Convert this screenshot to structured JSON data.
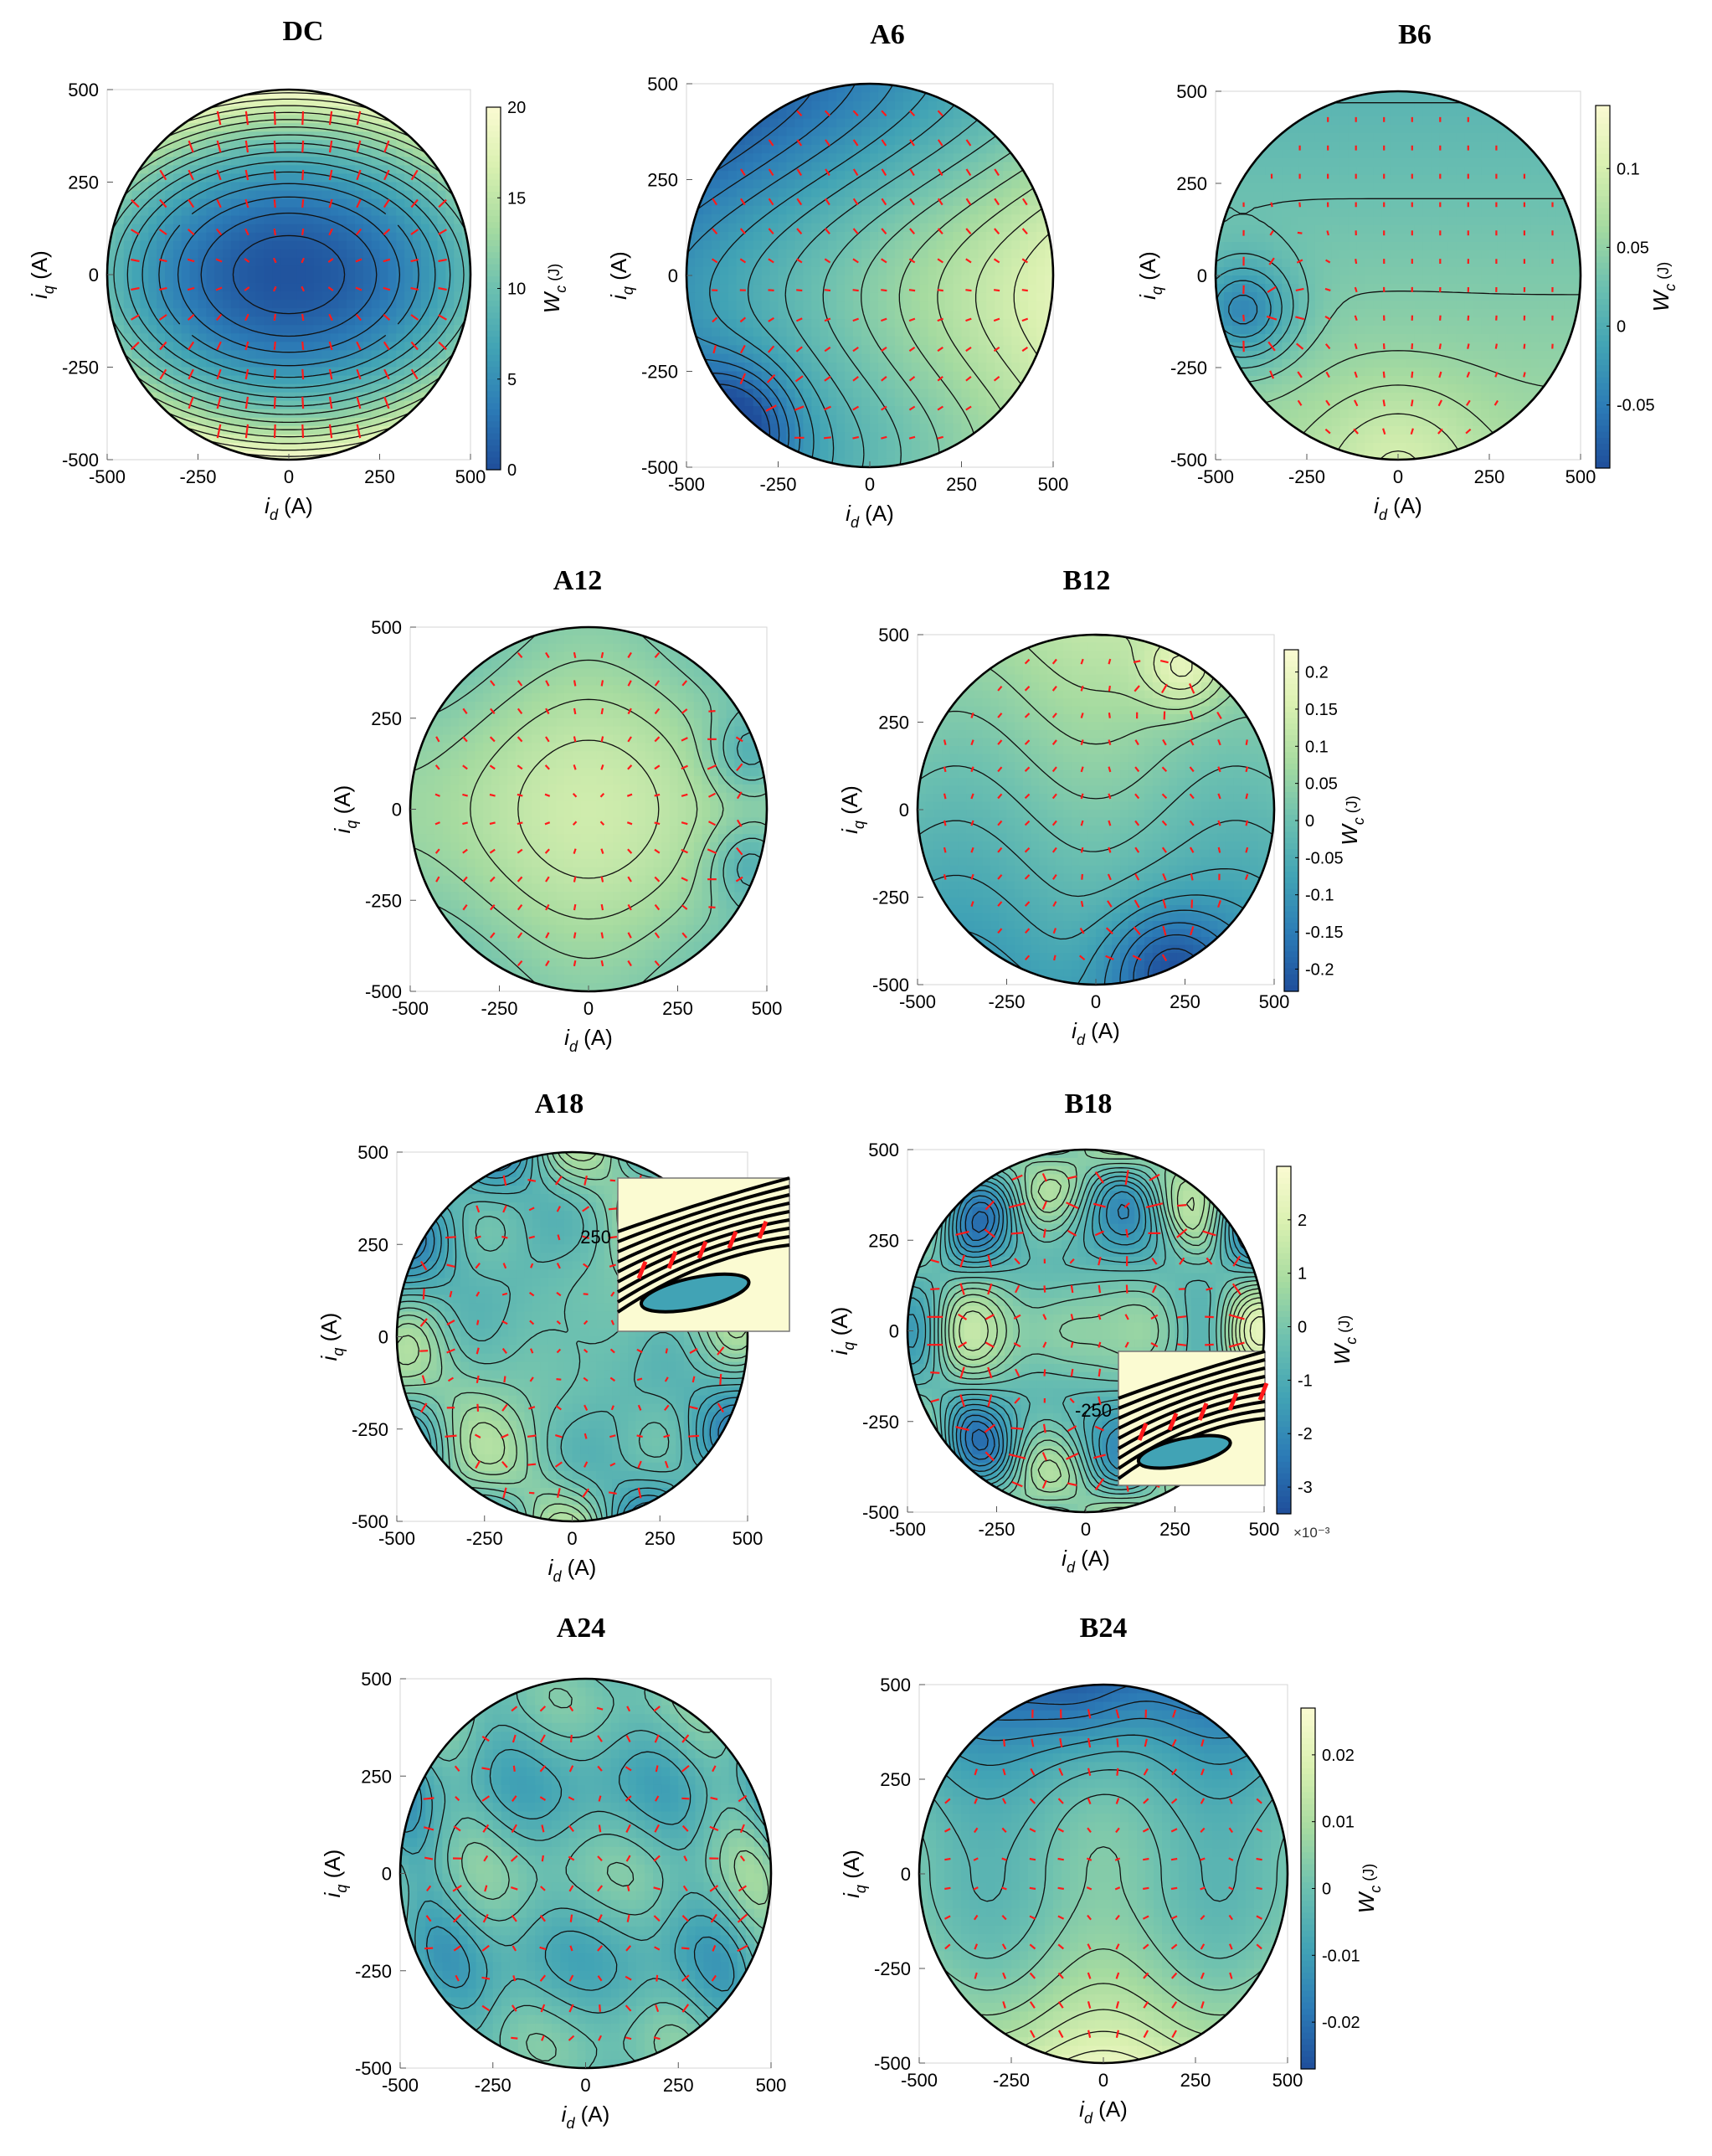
{
  "figure": {
    "axis_x_label": {
      "symbol": "i",
      "sub": "d",
      "unit": "(A)"
    },
    "axis_y_label": {
      "symbol": "i",
      "sub": "q",
      "unit": "(A)"
    },
    "colorbar_label": {
      "symbol": "W",
      "sub": "c",
      "unit": "(J)"
    },
    "colormap": [
      "#1f4e9b",
      "#2c7bb6",
      "#41a3b5",
      "#6cc0b0",
      "#a6dba0",
      "#d9f0b0",
      "#fbfbd2"
    ],
    "contour_color": "#111111",
    "arrow_color": "#ff1a1a"
  },
  "chart_data": [
    {
      "type": "heatmap",
      "title": "DC",
      "xlim": [
        -500,
        500
      ],
      "ylim": [
        -500,
        500
      ],
      "x_ticks": [
        "-500",
        "-250",
        "0",
        "250",
        "500"
      ],
      "y_ticks": [
        "-500",
        "-250",
        "0",
        "250",
        "500"
      ],
      "colorbar": {
        "range": [
          0,
          20
        ],
        "ticks": [
          "0",
          "5",
          "10",
          "15",
          "20"
        ],
        "exponent": ""
      }
    },
    {
      "type": "heatmap",
      "title": "A6",
      "xlim": [
        -500,
        500
      ],
      "ylim": [
        -500,
        500
      ],
      "x_ticks": [
        "-500",
        "-250",
        "0",
        "250",
        "500"
      ],
      "y_ticks": [
        "-500",
        "-250",
        "0",
        "250",
        "500"
      ]
    },
    {
      "type": "heatmap",
      "title": "B6",
      "xlim": [
        -500,
        500
      ],
      "ylim": [
        -500,
        500
      ],
      "x_ticks": [
        "-500",
        "-250",
        "0",
        "250",
        "500"
      ],
      "y_ticks": [
        "-500",
        "-250",
        "0",
        "250",
        "500"
      ],
      "colorbar": {
        "range": [
          -0.09,
          0.14
        ],
        "ticks": [
          "-0.05",
          "0",
          "0.05",
          "0.1"
        ],
        "tick_values": [
          -0.05,
          0,
          0.05,
          0.1
        ],
        "exponent": ""
      }
    },
    {
      "type": "heatmap",
      "title": "A12",
      "xlim": [
        -500,
        500
      ],
      "ylim": [
        -500,
        500
      ],
      "x_ticks": [
        "-500",
        "-250",
        "0",
        "250",
        "500"
      ],
      "y_ticks": [
        "-500",
        "-250",
        "0",
        "250",
        "500"
      ]
    },
    {
      "type": "heatmap",
      "title": "B12",
      "xlim": [
        -500,
        500
      ],
      "ylim": [
        -500,
        500
      ],
      "x_ticks": [
        "-500",
        "-250",
        "0",
        "250",
        "500"
      ],
      "y_ticks": [
        "-500",
        "-250",
        "0",
        "250",
        "500"
      ],
      "colorbar": {
        "range": [
          -0.23,
          0.23
        ],
        "ticks": [
          "-0.2",
          "-0.15",
          "-0.1",
          "-0.05",
          "0",
          "0.05",
          "0.1",
          "0.15",
          "0.2"
        ],
        "tick_values": [
          -0.2,
          -0.15,
          -0.1,
          -0.05,
          0,
          0.05,
          0.1,
          0.15,
          0.2
        ],
        "exponent": ""
      }
    },
    {
      "type": "heatmap",
      "title": "A18",
      "xlim": [
        -500,
        500
      ],
      "ylim": [
        -500,
        500
      ],
      "x_ticks": [
        "-500",
        "-250",
        "0",
        "250",
        "500"
      ],
      "y_ticks": [
        "-500",
        "-250",
        "0",
        "250",
        "500"
      ],
      "inset_label": "250"
    },
    {
      "type": "heatmap",
      "title": "B18",
      "xlim": [
        -500,
        500
      ],
      "ylim": [
        -500,
        500
      ],
      "x_ticks": [
        "-500",
        "-250",
        "0",
        "250",
        "500"
      ],
      "y_ticks": [
        "-500",
        "-250",
        "0",
        "250",
        "500"
      ],
      "inset_label": "-250",
      "colorbar": {
        "range": [
          -3.5,
          3
        ],
        "ticks": [
          "-3",
          "-2",
          "-1",
          "0",
          "1",
          "2"
        ],
        "tick_values": [
          -3,
          -2,
          -1,
          0,
          1,
          2
        ],
        "exponent": "×10⁻³"
      }
    },
    {
      "type": "heatmap",
      "title": "A24",
      "xlim": [
        -500,
        500
      ],
      "ylim": [
        -500,
        500
      ],
      "x_ticks": [
        "-500",
        "-250",
        "0",
        "250",
        "500"
      ],
      "y_ticks": [
        "-500",
        "-250",
        "0",
        "250",
        "500"
      ]
    },
    {
      "type": "heatmap",
      "title": "B24",
      "xlim": [
        -500,
        500
      ],
      "ylim": [
        -500,
        500
      ],
      "x_ticks": [
        "-500",
        "-250",
        "0",
        "250",
        "500"
      ],
      "y_ticks": [
        "-500",
        "-250",
        "0",
        "250",
        "500"
      ],
      "colorbar": {
        "range": [
          -0.027,
          0.027
        ],
        "ticks": [
          "-0.02",
          "-0.01",
          "0",
          "0.01",
          "0.02"
        ],
        "tick_values": [
          -0.02,
          -0.01,
          0,
          0.01,
          0.02
        ],
        "exponent": ""
      }
    }
  ]
}
